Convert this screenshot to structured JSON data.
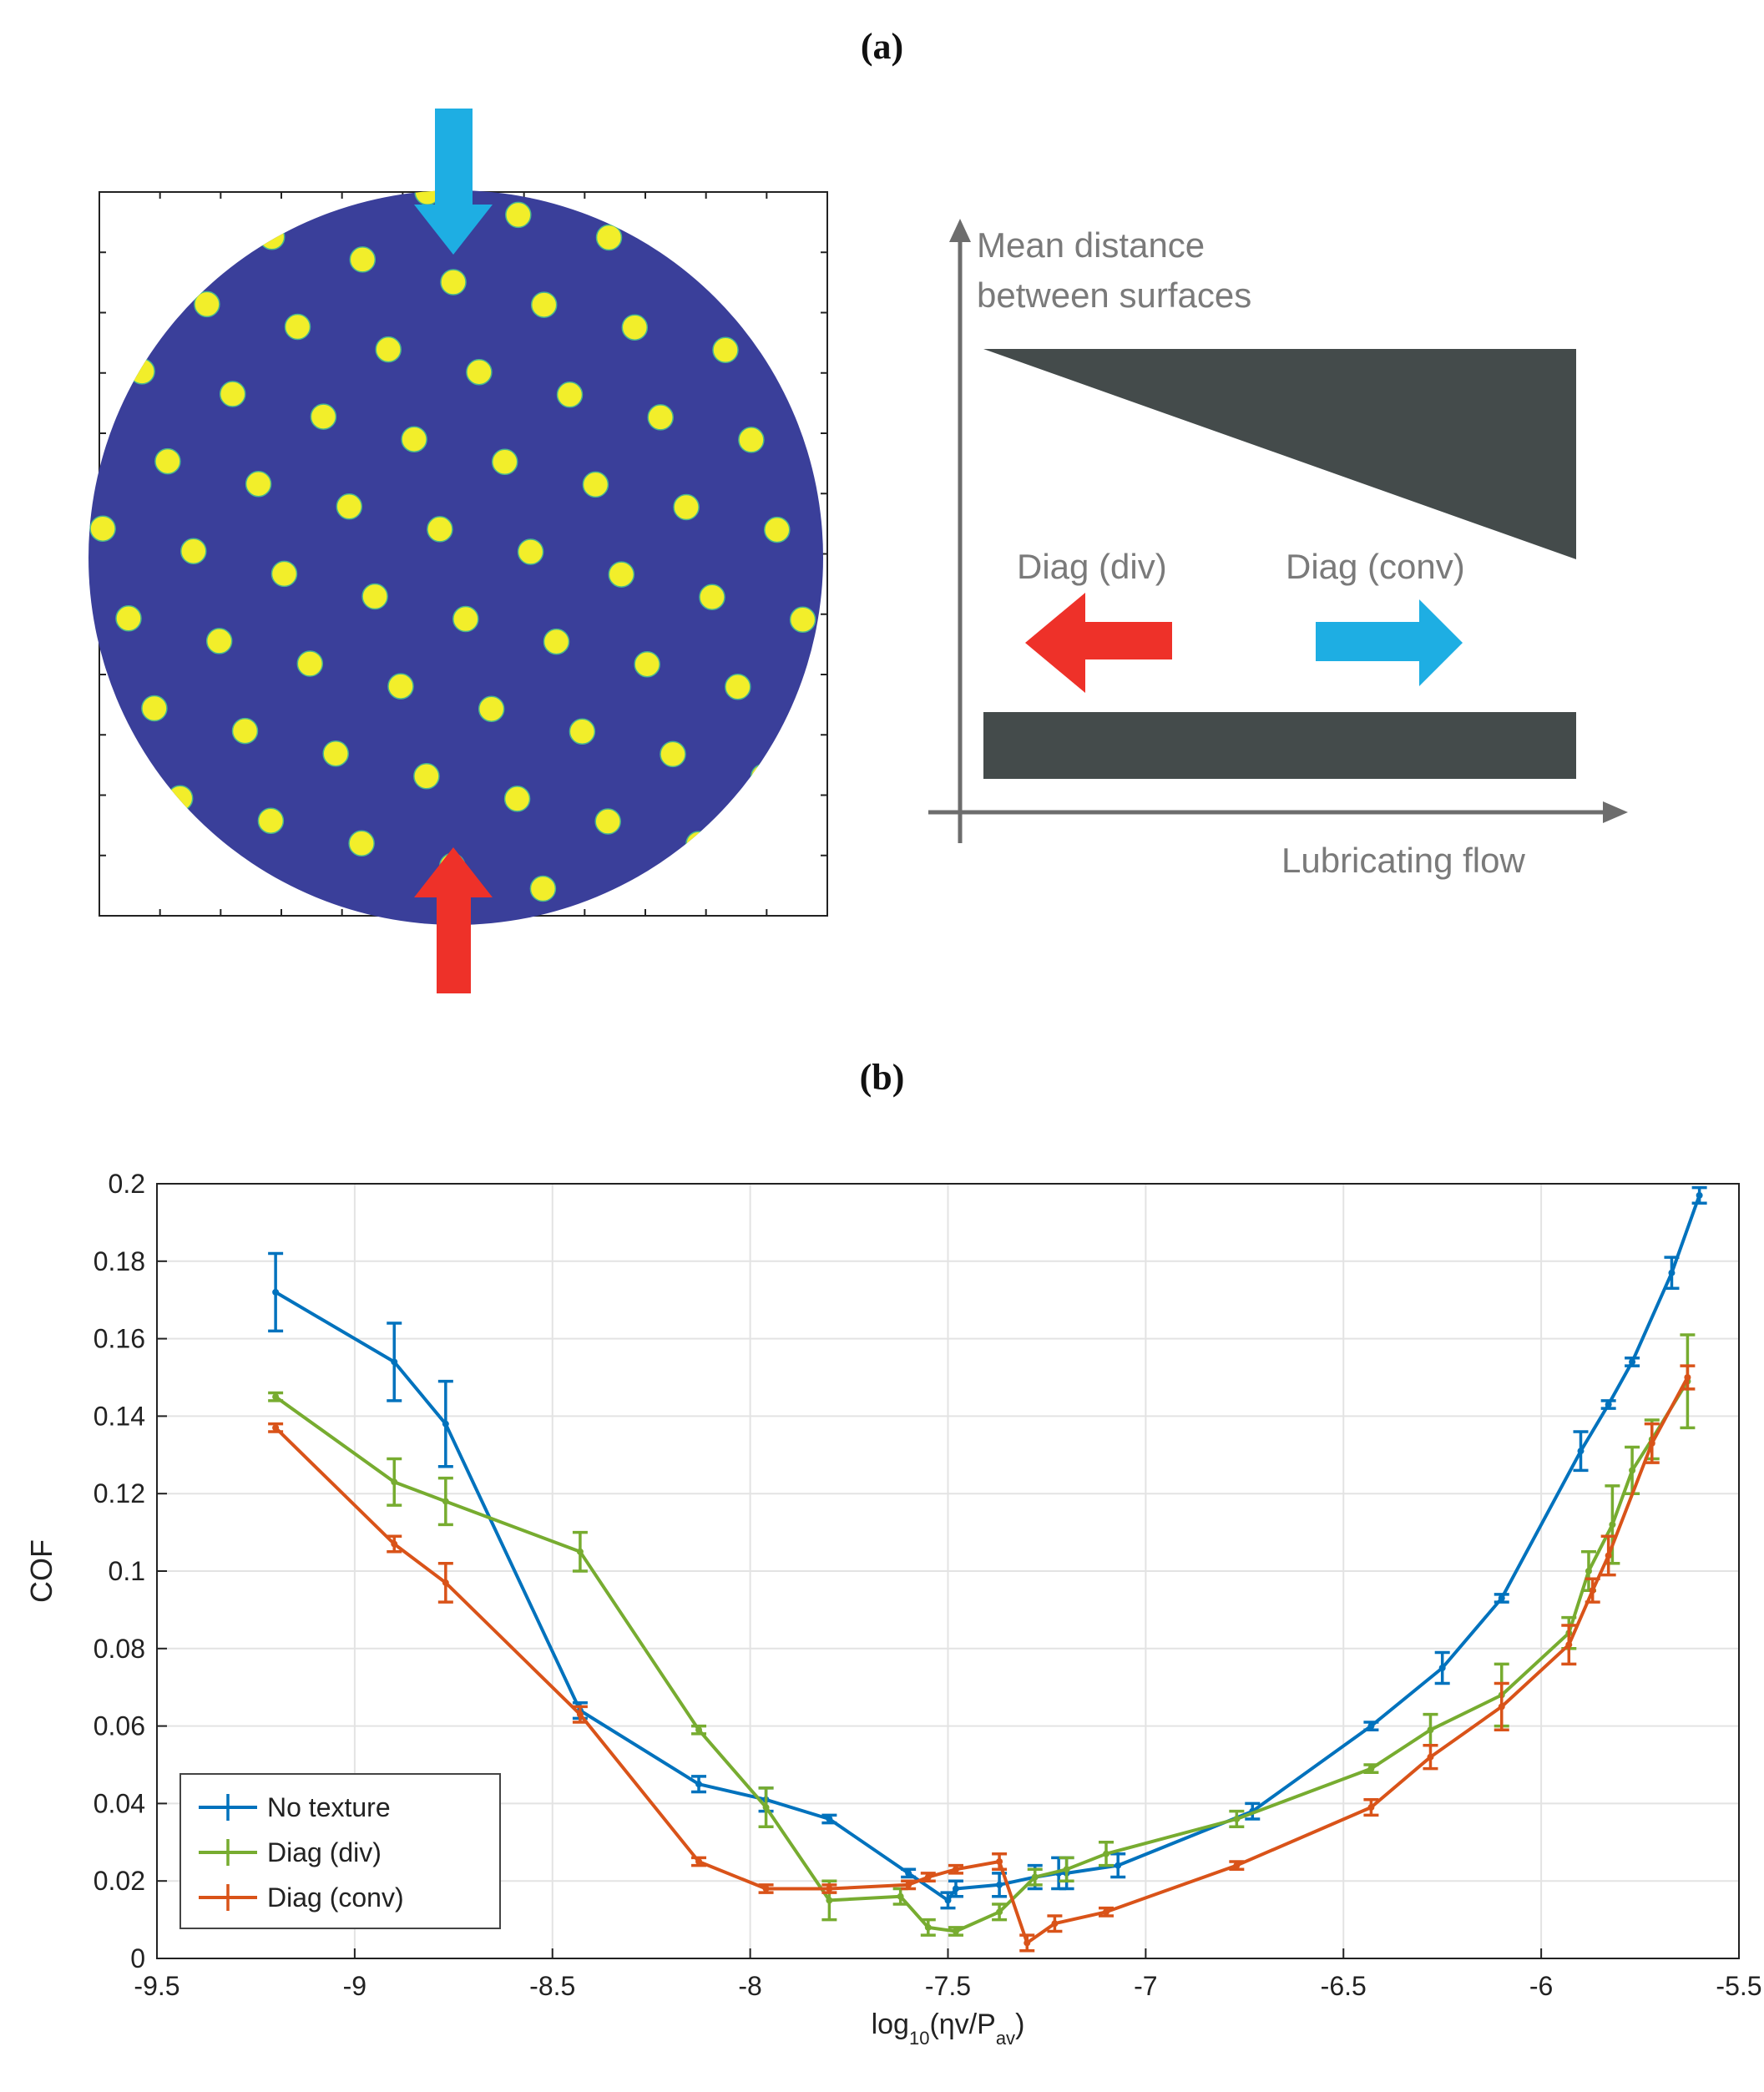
{
  "panel_a": {
    "label": "(a)",
    "schematic": {
      "y_axis_label_line1": "Mean distance",
      "y_axis_label_line2": "between surfaces",
      "x_axis_label": "Lubricating flow",
      "div_label": "Diag (div)",
      "conv_label": "Diag (conv)"
    },
    "colors": {
      "disc": "#3a3f9a",
      "dots": "#f2ee2a",
      "arrow_blue": "#1eaee3",
      "arrow_red": "#ee3129",
      "block": "#444b4b",
      "axis_gray": "#6d6d6d"
    }
  },
  "panel_b": {
    "label": "(b)"
  },
  "chart_data": {
    "type": "line",
    "xlabel": "log10(ηv/Pav)",
    "ylabel": "COF",
    "xlim": [
      -9.5,
      -5.5
    ],
    "ylim": [
      0,
      0.2
    ],
    "xticks": [
      "-9.5",
      "-9",
      "-8.5",
      "-8",
      "-7.5",
      "-7",
      "-6.5",
      "-6",
      "-5.5"
    ],
    "yticks": [
      "0",
      "0.02",
      "0.04",
      "0.06",
      "0.08",
      "0.1",
      "0.12",
      "0.14",
      "0.16",
      "0.18",
      "0.2"
    ],
    "grid": true,
    "legend_position": "bottom-left",
    "series": [
      {
        "name": "No texture",
        "color": "#0072bd",
        "x": [
          -9.2,
          -8.9,
          -8.77,
          -8.43,
          -8.13,
          -7.96,
          -7.8,
          -7.6,
          -7.5,
          -7.48,
          -7.37,
          -7.28,
          -7.22,
          -7.2,
          -7.07,
          -6.73,
          -6.43,
          -6.25,
          -6.1,
          -5.9,
          -5.83,
          -5.77,
          -5.67,
          -5.6
        ],
        "y": [
          0.172,
          0.154,
          0.138,
          0.064,
          0.045,
          0.041,
          0.036,
          0.022,
          0.015,
          0.018,
          0.019,
          0.021,
          0.022,
          0.022,
          0.024,
          0.038,
          0.06,
          0.075,
          0.093,
          0.131,
          0.143,
          0.154,
          0.177,
          0.197
        ],
        "err": [
          0.01,
          0.01,
          0.011,
          0.002,
          0.002,
          0.003,
          0.001,
          0.001,
          0.002,
          0.002,
          0.003,
          0.003,
          0.004,
          0.004,
          0.003,
          0.002,
          0.001,
          0.004,
          0.001,
          0.005,
          0.001,
          0.001,
          0.004,
          0.002
        ]
      },
      {
        "name": "Diag (div)",
        "color": "#77ac30",
        "x": [
          -9.2,
          -8.9,
          -8.77,
          -8.43,
          -8.13,
          -7.96,
          -7.8,
          -7.62,
          -7.55,
          -7.48,
          -7.37,
          -7.28,
          -7.2,
          -7.1,
          -6.77,
          -6.43,
          -6.28,
          -6.1,
          -5.93,
          -5.88,
          -5.82,
          -5.77,
          -5.72,
          -5.63
        ],
        "y": [
          0.145,
          0.123,
          0.118,
          0.105,
          0.059,
          0.039,
          0.015,
          0.016,
          0.008,
          0.007,
          0.012,
          0.021,
          0.023,
          0.027,
          0.036,
          0.049,
          0.059,
          0.068,
          0.084,
          0.1,
          0.112,
          0.126,
          0.134,
          0.149
        ],
        "err": [
          0.001,
          0.006,
          0.006,
          0.005,
          0.001,
          0.005,
          0.005,
          0.002,
          0.002,
          0.001,
          0.002,
          0.002,
          0.003,
          0.003,
          0.002,
          0.001,
          0.004,
          0.008,
          0.004,
          0.005,
          0.01,
          0.006,
          0.005,
          0.012
        ]
      },
      {
        "name": "Diag (conv)",
        "color": "#d95319",
        "x": [
          -9.2,
          -8.9,
          -8.77,
          -8.43,
          -8.13,
          -7.96,
          -7.8,
          -7.6,
          -7.55,
          -7.48,
          -7.37,
          -7.3,
          -7.23,
          -7.1,
          -6.77,
          -6.43,
          -6.28,
          -6.1,
          -5.93,
          -5.87,
          -5.83,
          -5.72,
          -5.63
        ],
        "y": [
          0.137,
          0.107,
          0.097,
          0.063,
          0.025,
          0.018,
          0.018,
          0.019,
          0.021,
          0.023,
          0.025,
          0.004,
          0.009,
          0.012,
          0.024,
          0.039,
          0.052,
          0.065,
          0.081,
          0.095,
          0.104,
          0.133,
          0.15
        ],
        "err": [
          0.001,
          0.002,
          0.005,
          0.002,
          0.001,
          0.001,
          0.001,
          0.001,
          0.001,
          0.001,
          0.002,
          0.002,
          0.002,
          0.001,
          0.001,
          0.002,
          0.003,
          0.006,
          0.005,
          0.003,
          0.005,
          0.005,
          0.003
        ]
      }
    ]
  }
}
